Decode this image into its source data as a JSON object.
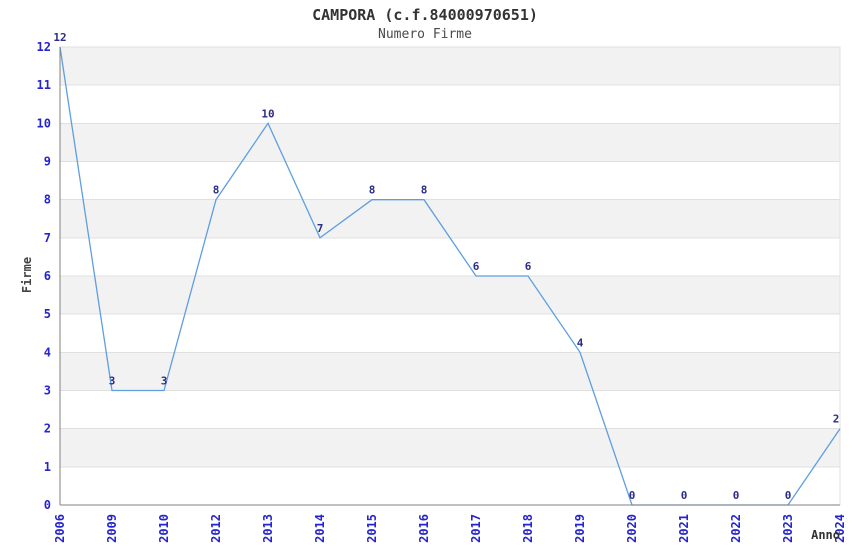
{
  "chart_data": {
    "type": "line",
    "title": "CAMPORA (c.f.84000970651)",
    "subtitle": "Numero Firme",
    "xlabel": "Anno",
    "ylabel": "Firme",
    "categories": [
      "2006",
      "2009",
      "2010",
      "2012",
      "2013",
      "2014",
      "2015",
      "2016",
      "2017",
      "2018",
      "2019",
      "2020",
      "2021",
      "2022",
      "2023",
      "2024"
    ],
    "values": [
      12,
      3,
      3,
      8,
      10,
      7,
      8,
      8,
      6,
      6,
      4,
      0,
      0,
      0,
      0,
      2
    ],
    "ylim": [
      0,
      12
    ],
    "ytick_step": 1,
    "grid": "alternating horizontal 1-unit bands, gray on odd intervals",
    "legend": "none",
    "point_markers": "none",
    "value_labels_shown": true,
    "colors": {
      "line": "#5e9ee0",
      "tick_labels": "#2424d0",
      "value_labels": "#2d2d87",
      "band_fill": "#f2f2f2",
      "band_border": "#e0e0e0",
      "axis": "#808080",
      "title": "#333333",
      "subtitle": "#4a4a4a",
      "axis_titles": "#444444"
    }
  }
}
